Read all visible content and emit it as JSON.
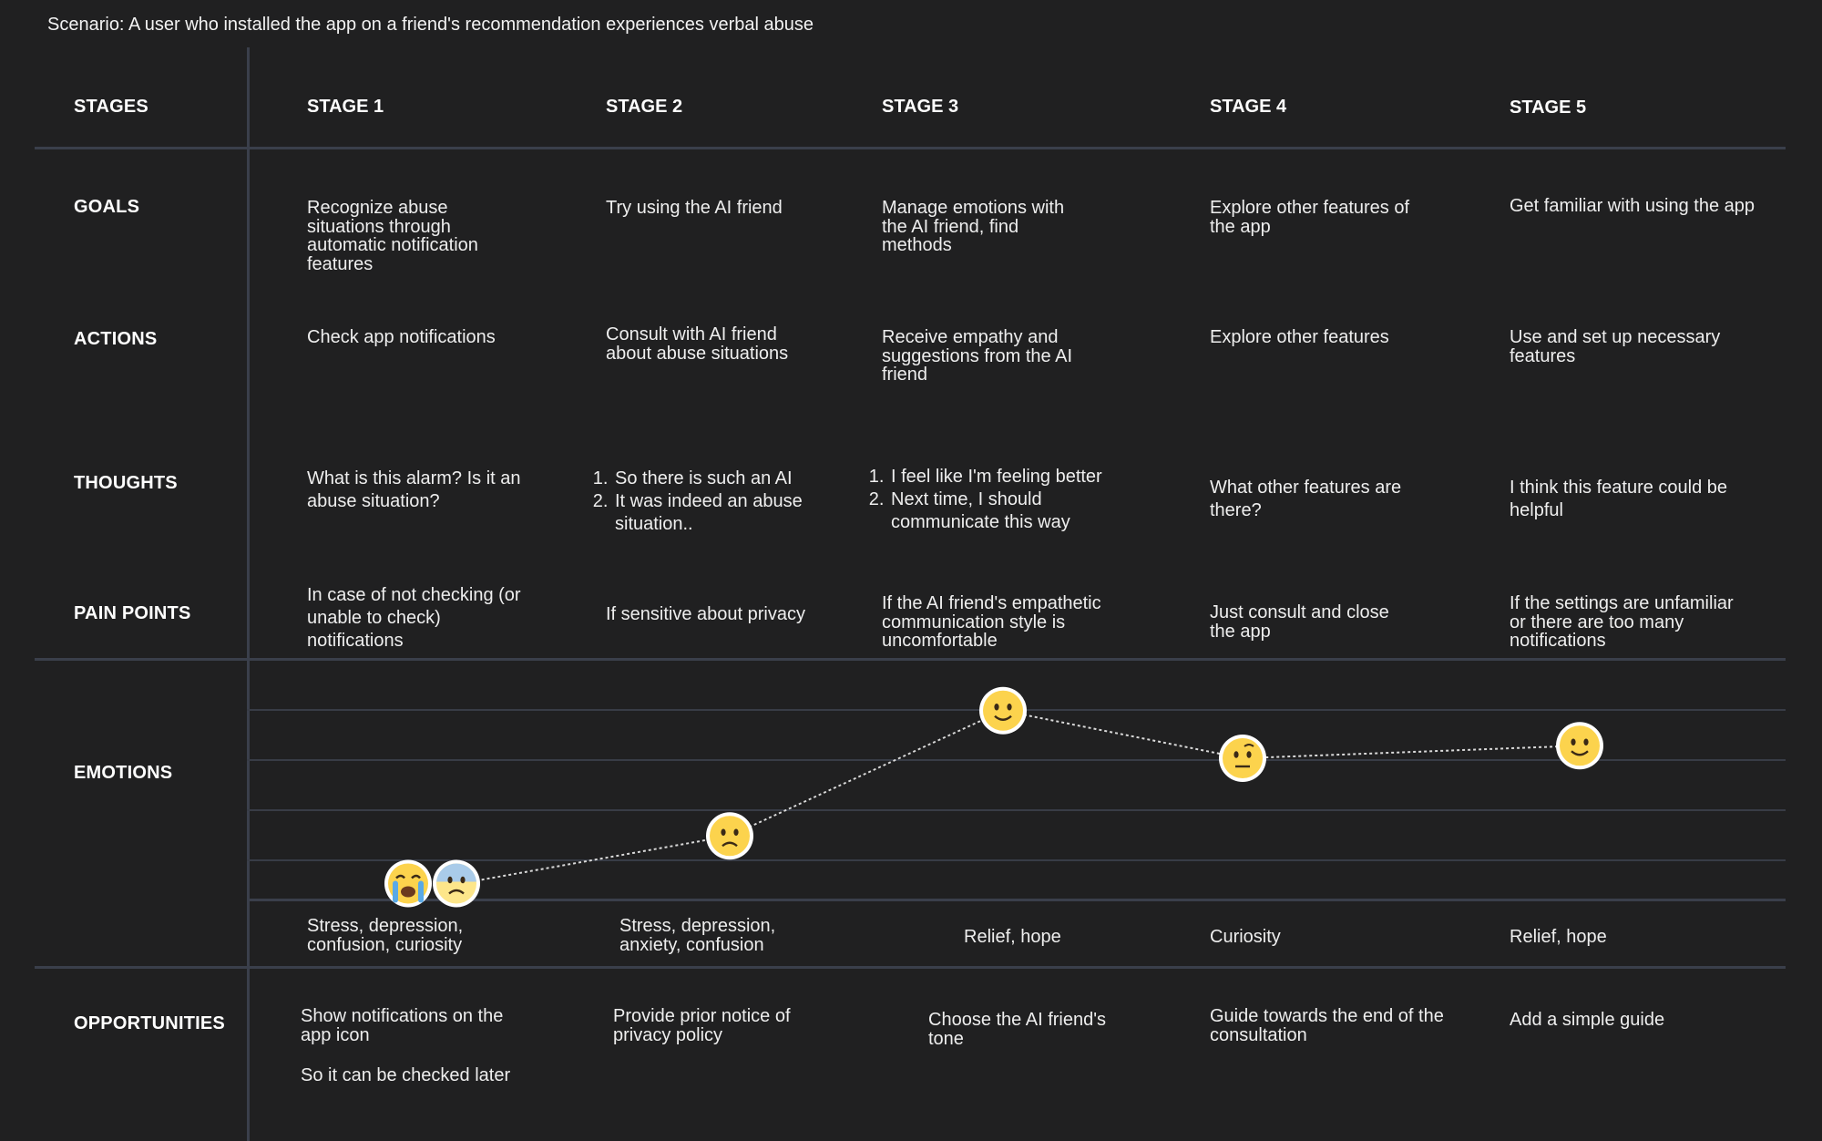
{
  "scenario": "Scenario: A user who installed the app on a friend's recommendation experiences verbal abuse",
  "rows": {
    "stages": "STAGES",
    "goals": "GOALS",
    "actions": "ACTIONS",
    "thoughts": "THOUGHTS",
    "pain_points": "PAIN POINTS",
    "emotions": "EMOTIONS",
    "opportunities": "OPPORTUNITIES"
  },
  "stages": [
    {
      "title": "STAGE 1",
      "goal": "Recognize abuse situations through automatic notification features",
      "action": "Check app notifications",
      "thoughts": [
        "What is this alarm? Is it an abuse situation?"
      ],
      "pain_point": "In case of not checking (or unable to check) notifications",
      "emotion": "Stress, depression, confusion, curiosity",
      "opportunity": [
        "Show notifications on the app icon",
        "So it can be checked later"
      ]
    },
    {
      "title": "STAGE 2",
      "goal": "Try using the AI friend",
      "action": "Consult with AI friend about abuse situations",
      "thoughts": [
        "So there is such an AI",
        "It was indeed an abuse situation.."
      ],
      "pain_point": "If sensitive about privacy",
      "emotion": "Stress, depression, anxiety, confusion",
      "opportunity": [
        "Provide prior notice of privacy policy"
      ]
    },
    {
      "title": "STAGE 3",
      "goal": "Manage emotions with the AI friend, find methods",
      "action": "Receive empathy and suggestions from the AI friend",
      "thoughts": [
        "I feel like I'm feeling better",
        "Next time, I should communicate this way"
      ],
      "pain_point": "If the AI friend's empathetic communication style is uncomfortable",
      "emotion": "Relief, hope",
      "opportunity": [
        "Choose the AI friend's tone"
      ]
    },
    {
      "title": "STAGE 4",
      "goal": "Explore other features of the app",
      "action": "Explore other features",
      "thoughts": [
        "What other features are there?"
      ],
      "pain_point": "Just consult and close the app",
      "emotion": "Curiosity",
      "opportunity": [
        "Guide towards the end of the consultation"
      ]
    },
    {
      "title": "STAGE 5",
      "goal": "Get familiar with using the app",
      "action": "Use and set up necessary features",
      "thoughts": [
        "I think this feature could be helpful"
      ],
      "pain_point": "If the settings are unfamiliar or there are too many notifications",
      "emotion": "Relief, hope",
      "opportunity": [
        "Add a simple guide"
      ]
    }
  ],
  "chart_data": {
    "type": "line",
    "x": [
      "STAGE 1",
      "STAGE 2",
      "STAGE 3",
      "STAGE 4",
      "STAGE 5"
    ],
    "levels": 5,
    "values": [
      0.3,
      1.25,
      3.75,
      2.8,
      3.05
    ],
    "markers": [
      {
        "stage": "STAGE 1",
        "icons": [
          "crying-face",
          "anxious-sweat-face"
        ]
      },
      {
        "stage": "STAGE 2",
        "icons": [
          "frowning-face"
        ]
      },
      {
        "stage": "STAGE 3",
        "icons": [
          "slightly-smiling-face"
        ]
      },
      {
        "stage": "STAGE 4",
        "icons": [
          "raised-eyebrow-face"
        ]
      },
      {
        "stage": "STAGE 5",
        "icons": [
          "slightly-smiling-face"
        ]
      }
    ],
    "line_style": "dotted",
    "line_color": "#d9d9d9",
    "emoji_color": "#fcd34d"
  }
}
